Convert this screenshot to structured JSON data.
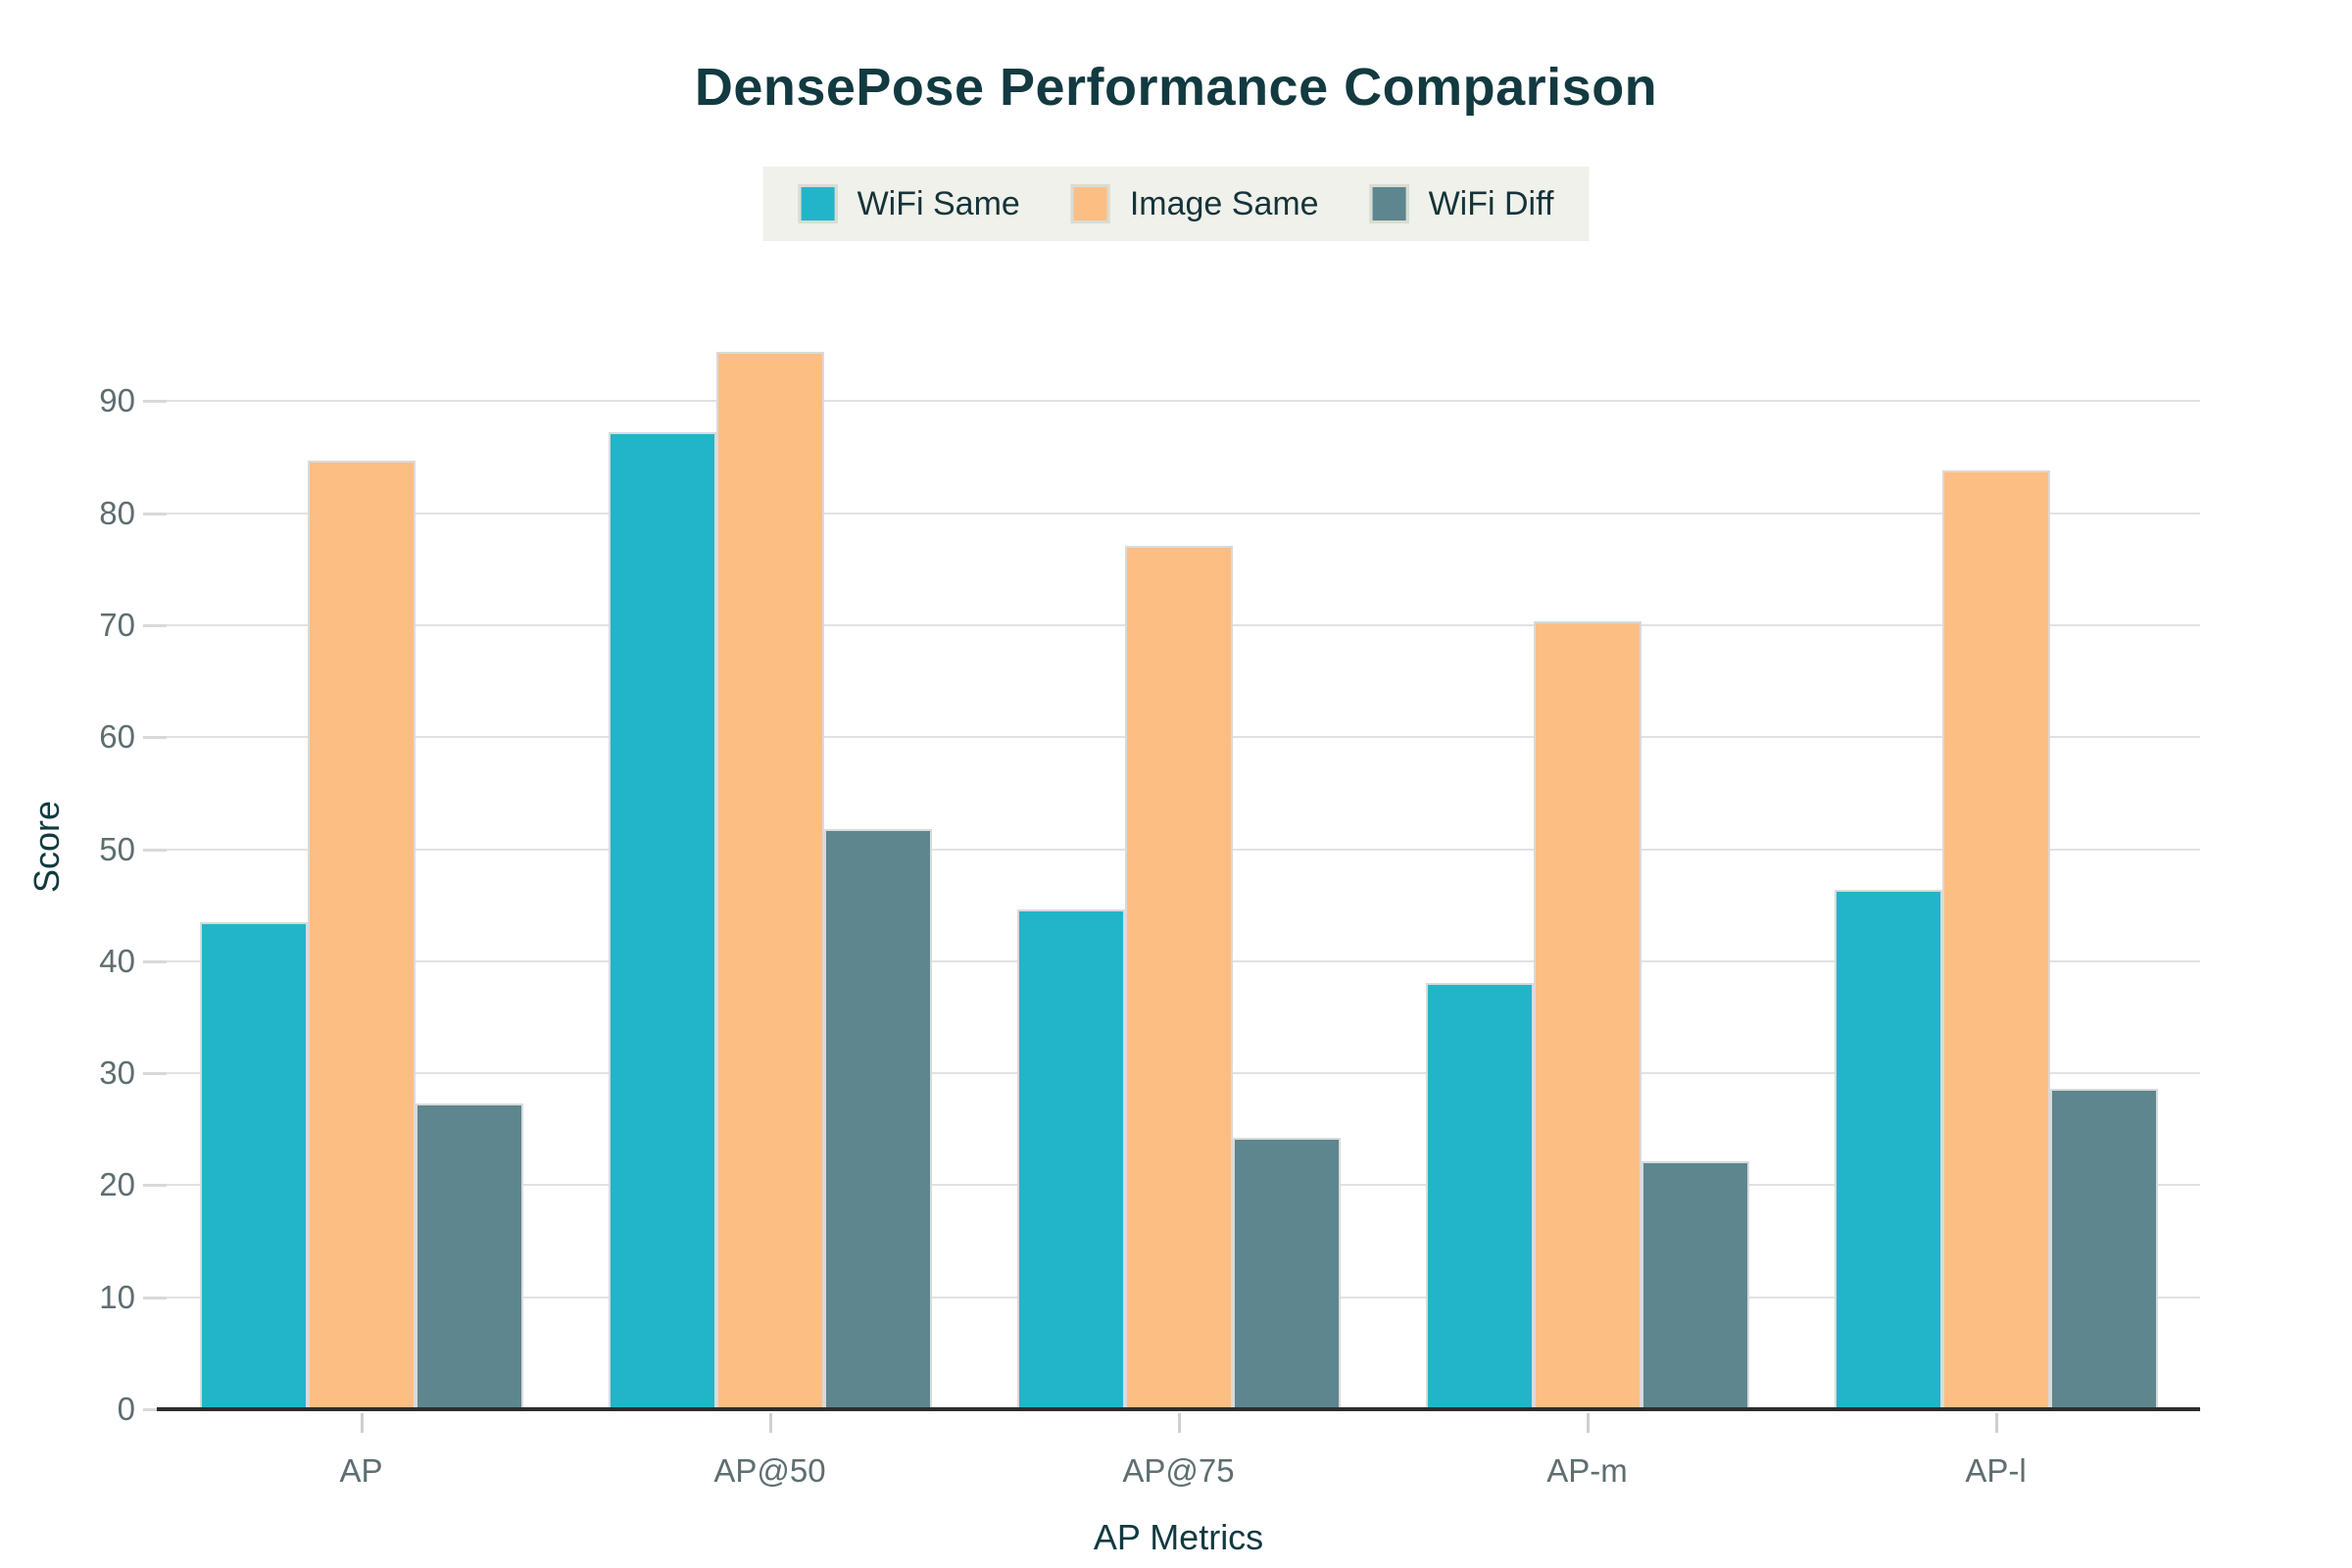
{
  "chart_data": {
    "type": "bar",
    "title": "DensePose Performance Comparison",
    "xlabel": "AP Metrics",
    "ylabel": "Score",
    "categories": [
      "AP",
      "AP@50",
      "AP@75",
      "AP-m",
      "AP-l"
    ],
    "series": [
      {
        "name": "WiFi Same",
        "color": "#22b5c9",
        "values": [
          43.5,
          87.2,
          44.6,
          38.1,
          46.4
        ]
      },
      {
        "name": "Image Same",
        "color": "#fcbe83",
        "values": [
          84.7,
          94.4,
          77.1,
          70.3,
          83.8
        ]
      },
      {
        "name": "WiFi Diff",
        "color": "#5d868e",
        "values": [
          27.3,
          51.8,
          24.2,
          22.1,
          28.6
        ]
      }
    ],
    "y_ticks": [
      0,
      10,
      20,
      30,
      40,
      50,
      60,
      70,
      80,
      90
    ],
    "ylim": [
      0,
      100
    ],
    "grid": "horizontal",
    "legend_position": "top-center"
  },
  "colors": {
    "title_text": "#123a40",
    "tick_text": "#5e6e71",
    "gridline": "#e2e2e2",
    "axis_line": "#2d2d2d",
    "legend_background": "#eff1ea"
  }
}
